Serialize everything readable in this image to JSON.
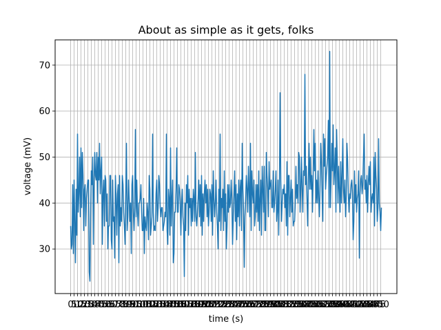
{
  "chart_data": {
    "type": "line",
    "title": "About as simple as it gets, folks",
    "xlabel": "time (s)",
    "ylabel": "voltage (mV)",
    "grid": true,
    "series_color": "#1f77b4",
    "grid_color": "#b0b0b0",
    "x": {
      "start": 0,
      "end": 451,
      "step": 1
    },
    "x_tick_step": 5,
    "xlim": [
      -22.5,
      473.5
    ],
    "ylim": [
      20.3,
      75.5
    ],
    "y_ticks": [
      30,
      40,
      50,
      60,
      70
    ],
    "y": [
      35,
      30,
      31,
      44,
      29,
      45,
      36,
      27,
      43,
      33,
      55,
      38,
      42,
      50,
      37,
      52,
      39,
      51,
      46,
      34,
      43,
      44,
      35,
      41,
      43,
      45,
      45,
      25,
      23,
      37,
      47,
      44,
      50,
      31,
      45,
      51,
      46,
      45,
      51,
      40,
      50,
      45,
      53,
      42,
      47,
      50,
      31,
      42,
      45,
      35,
      46,
      45,
      36,
      42,
      30,
      35,
      35,
      46,
      46,
      32,
      30,
      45,
      36,
      37,
      28,
      46,
      41,
      33,
      42,
      44,
      27,
      46,
      35,
      39,
      36,
      46,
      44,
      38,
      35,
      31,
      42,
      53,
      34,
      37,
      45,
      41,
      36,
      40,
      29,
      44,
      46,
      38,
      34,
      39,
      56,
      37,
      45,
      38,
      35,
      40,
      40,
      41,
      44,
      38,
      34,
      34,
      41,
      29,
      37,
      35,
      34,
      40,
      38,
      32,
      46,
      43,
      33,
      35,
      37,
      55,
      38,
      34,
      35,
      34,
      42,
      45,
      36,
      39,
      46,
      44,
      39,
      37,
      39,
      39,
      34,
      35,
      36,
      38,
      37,
      55,
      34,
      31,
      43,
      41,
      33,
      52,
      35,
      41,
      45,
      27,
      29,
      38,
      38,
      43,
      52,
      38,
      38,
      44,
      43,
      40,
      33,
      40,
      43,
      37,
      35,
      24,
      40,
      34,
      44,
      40,
      46,
      33,
      43,
      39,
      41,
      35,
      41,
      36,
      43,
      41,
      36,
      51,
      37,
      35,
      38,
      41,
      45,
      37,
      44,
      35,
      46,
      33,
      42,
      36,
      42,
      45,
      40,
      44,
      37,
      43,
      35,
      38,
      43,
      42,
      36,
      44,
      33,
      47,
      41,
      37,
      40,
      45,
      38,
      35,
      30,
      43,
      36,
      55,
      34,
      41,
      39,
      43,
      34,
      47,
      36,
      42,
      30,
      35,
      44,
      38,
      44,
      39,
      40,
      45,
      41,
      31,
      37,
      42,
      47,
      36,
      44,
      32,
      42,
      37,
      45,
      35,
      43,
      45,
      34,
      53,
      43,
      38,
      26,
      37,
      41,
      46,
      43,
      38,
      48,
      43,
      37,
      53,
      34,
      47,
      42,
      40,
      45,
      35,
      37,
      44,
      38,
      44,
      36,
      47,
      34,
      41,
      45,
      33,
      48,
      43,
      38,
      48,
      34,
      34,
      51,
      46,
      43,
      37,
      49,
      43,
      44,
      45,
      39,
      39,
      47,
      38,
      40,
      43,
      47,
      36,
      38,
      45,
      33,
      43,
      64,
      45,
      36,
      40,
      43,
      42,
      44,
      39,
      42,
      35,
      49,
      33,
      46,
      46,
      37,
      41,
      45,
      38,
      43,
      35,
      36,
      36,
      40,
      48,
      41,
      44,
      40,
      51,
      50,
      38,
      43,
      50,
      43,
      38,
      47,
      46,
      68,
      44,
      48,
      41,
      35,
      45,
      53,
      43,
      50,
      43,
      46,
      38,
      46,
      56,
      47,
      53,
      40,
      45,
      40,
      47,
      41,
      37,
      44,
      53,
      49,
      41,
      36,
      55,
      48,
      54,
      43,
      46,
      48,
      50,
      58,
      39,
      73,
      39,
      45,
      53,
      47,
      57,
      44,
      47,
      52,
      38,
      56,
      49,
      40,
      48,
      43,
      38,
      49,
      40,
      46,
      54,
      43,
      40,
      45,
      37,
      41,
      53,
      49,
      42,
      38,
      42,
      41,
      44,
      45,
      42,
      32,
      36,
      47,
      40,
      44,
      38,
      41,
      42,
      47,
      28,
      42,
      45,
      46,
      42,
      44,
      50,
      55,
      43,
      45,
      40,
      46,
      38,
      44,
      48,
      44,
      49,
      38,
      41,
      42,
      40,
      50,
      35,
      51,
      46,
      43,
      36,
      39,
      54,
      40,
      38,
      34,
      39,
      47,
      43,
      32,
      41,
      33,
      35,
      48,
      46,
      38,
      46,
      33,
      37,
      33,
      48,
      36,
      41,
      46,
      42,
      35,
      40,
      36,
      41,
      45,
      42,
      54,
      43,
      34,
      40,
      44,
      39,
      49,
      35,
      51,
      47,
      38,
      47,
      40,
      39,
      53,
      37,
      39,
      39,
      42,
      46,
      42,
      34,
      48,
      39,
      52,
      45,
      51,
      42,
      40,
      39,
      38,
      41,
      54,
      39,
      36,
      41,
      42,
      48,
      50,
      53,
      52,
      40,
      51,
      43,
      48,
      45,
      40,
      48,
      55,
      50,
      52,
      53,
      52,
      50
    ]
  }
}
